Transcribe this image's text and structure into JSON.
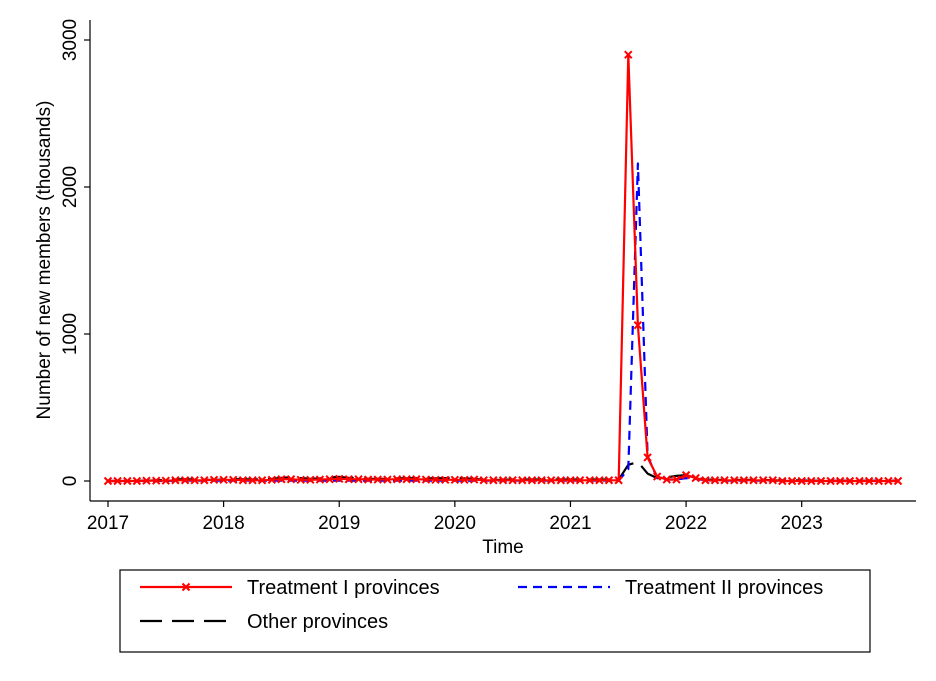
{
  "chart_data": {
    "type": "line",
    "xlabel": "Time",
    "ylabel": "Number of new members (thousands)",
    "x_ticks": [
      "2017",
      "2018",
      "2019",
      "2020",
      "2021",
      "2022",
      "2023"
    ],
    "y_ticks": [
      "0",
      "1000",
      "2000",
      "3000"
    ],
    "xlim": [
      2017.0,
      2023.833
    ],
    "ylim": [
      0,
      3000
    ],
    "grid": false,
    "legend_position": "bottom",
    "series": [
      {
        "name": "Treatment I provinces",
        "color": "#ff0000",
        "style": "solid-marker-x",
        "x": [
          2017.0,
          2017.083,
          2017.167,
          2017.25,
          2017.333,
          2017.417,
          2017.5,
          2017.583,
          2017.667,
          2017.75,
          2017.833,
          2017.917,
          2018.0,
          2018.083,
          2018.167,
          2018.25,
          2018.333,
          2018.417,
          2018.5,
          2018.583,
          2018.667,
          2018.75,
          2018.833,
          2018.917,
          2019.0,
          2019.083,
          2019.167,
          2019.25,
          2019.333,
          2019.417,
          2019.5,
          2019.583,
          2019.667,
          2019.75,
          2019.833,
          2019.917,
          2020.0,
          2020.083,
          2020.167,
          2020.25,
          2020.333,
          2020.417,
          2020.5,
          2020.583,
          2020.667,
          2020.75,
          2020.833,
          2020.917,
          2021.0,
          2021.083,
          2021.167,
          2021.25,
          2021.333,
          2021.417,
          2021.5,
          2021.583,
          2021.667,
          2021.75,
          2021.833,
          2021.917,
          2022.0,
          2022.083,
          2022.167,
          2022.25,
          2022.333,
          2022.417,
          2022.5,
          2022.583,
          2022.667,
          2022.75,
          2022.833,
          2022.917,
          2023.0,
          2023.083,
          2023.167,
          2023.25,
          2023.333,
          2023.417,
          2023.5,
          2023.583,
          2023.667,
          2023.75,
          2023.833
        ],
        "y": [
          0,
          0,
          0,
          0,
          2,
          2,
          2,
          5,
          5,
          5,
          5,
          8,
          8,
          8,
          5,
          5,
          5,
          8,
          12,
          12,
          8,
          8,
          10,
          12,
          15,
          12,
          12,
          10,
          10,
          10,
          12,
          12,
          12,
          10,
          8,
          8,
          8,
          8,
          10,
          5,
          5,
          5,
          5,
          5,
          5,
          5,
          5,
          5,
          5,
          5,
          5,
          5,
          5,
          5,
          2900,
          1060,
          160,
          30,
          10,
          10,
          40,
          20,
          5,
          5,
          5,
          5,
          5,
          5,
          5,
          5,
          0,
          0,
          0,
          0,
          0,
          0,
          0,
          0,
          0,
          0,
          0,
          0,
          0
        ]
      },
      {
        "name": "Treatment II provinces",
        "color": "#0000ff",
        "style": "short-dash",
        "x": [
          2017.0,
          2017.083,
          2017.167,
          2017.25,
          2017.333,
          2017.417,
          2017.5,
          2017.583,
          2017.667,
          2017.75,
          2017.833,
          2017.917,
          2018.0,
          2018.083,
          2018.167,
          2018.25,
          2018.333,
          2018.417,
          2018.5,
          2018.583,
          2018.667,
          2018.75,
          2018.833,
          2018.917,
          2019.0,
          2019.083,
          2019.167,
          2019.25,
          2019.333,
          2019.417,
          2019.5,
          2019.583,
          2019.667,
          2019.75,
          2019.833,
          2019.917,
          2020.0,
          2020.083,
          2020.167,
          2020.25,
          2020.333,
          2020.417,
          2020.5,
          2020.583,
          2020.667,
          2020.75,
          2020.833,
          2020.917,
          2021.0,
          2021.083,
          2021.167,
          2021.25,
          2021.333,
          2021.417,
          2021.5,
          2021.583,
          2021.667,
          2021.75,
          2021.833,
          2021.917,
          2022.0,
          2022.083,
          2022.167,
          2022.25,
          2022.333,
          2022.417,
          2022.5,
          2022.583,
          2022.667,
          2022.75,
          2022.833,
          2022.917,
          2023.0,
          2023.083,
          2023.167,
          2023.25,
          2023.333,
          2023.417,
          2023.5,
          2023.583,
          2023.667,
          2023.75,
          2023.833
        ],
        "y": [
          0,
          0,
          0,
          0,
          0,
          0,
          0,
          2,
          2,
          2,
          2,
          2,
          2,
          2,
          2,
          2,
          2,
          2,
          3,
          3,
          3,
          3,
          3,
          3,
          3,
          3,
          3,
          3,
          3,
          3,
          3,
          3,
          3,
          3,
          3,
          3,
          3,
          3,
          3,
          3,
          3,
          3,
          3,
          3,
          3,
          3,
          3,
          3,
          3,
          3,
          3,
          3,
          3,
          3,
          80,
          2160,
          170,
          20,
          10,
          10,
          20,
          15,
          5,
          3,
          3,
          3,
          3,
          3,
          3,
          3,
          0,
          0,
          0,
          0,
          0,
          0,
          0,
          0,
          0,
          0,
          0,
          0,
          0
        ]
      },
      {
        "name": "Other provinces",
        "color": "#000000",
        "style": "long-dash",
        "x": [
          2017.0,
          2017.083,
          2017.167,
          2017.25,
          2017.333,
          2017.417,
          2017.5,
          2017.583,
          2017.667,
          2017.75,
          2017.833,
          2017.917,
          2018.0,
          2018.083,
          2018.167,
          2018.25,
          2018.333,
          2018.417,
          2018.5,
          2018.583,
          2018.667,
          2018.75,
          2018.833,
          2018.917,
          2019.0,
          2019.083,
          2019.167,
          2019.25,
          2019.333,
          2019.417,
          2019.5,
          2019.583,
          2019.667,
          2019.75,
          2019.833,
          2019.917,
          2020.0,
          2020.083,
          2020.167,
          2020.25,
          2020.333,
          2020.417,
          2020.5,
          2020.583,
          2020.667,
          2020.75,
          2020.833,
          2020.917,
          2021.0,
          2021.083,
          2021.167,
          2021.25,
          2021.333,
          2021.417,
          2021.5,
          2021.583,
          2021.667,
          2021.75,
          2021.833,
          2021.917,
          2022.0,
          2022.083,
          2022.167,
          2022.25,
          2022.333,
          2022.417,
          2022.5,
          2022.583,
          2022.667,
          2022.75,
          2022.833,
          2022.917,
          2023.0,
          2023.083,
          2023.167,
          2023.25,
          2023.333,
          2023.417,
          2023.5,
          2023.583,
          2023.667,
          2023.75,
          2023.833
        ],
        "y": [
          0,
          0,
          0,
          2,
          2,
          5,
          8,
          10,
          12,
          10,
          8,
          8,
          10,
          12,
          12,
          10,
          12,
          15,
          22,
          25,
          20,
          15,
          18,
          25,
          28,
          22,
          18,
          15,
          15,
          15,
          18,
          18,
          20,
          18,
          18,
          20,
          22,
          18,
          15,
          8,
          8,
          8,
          10,
          10,
          10,
          10,
          10,
          10,
          10,
          10,
          10,
          10,
          10,
          10,
          110,
          130,
          50,
          20,
          25,
          35,
          40,
          20,
          10,
          8,
          8,
          8,
          8,
          8,
          8,
          5,
          5,
          5,
          5,
          2,
          2,
          2,
          2,
          2,
          2,
          2,
          2,
          2,
          2
        ]
      }
    ]
  }
}
